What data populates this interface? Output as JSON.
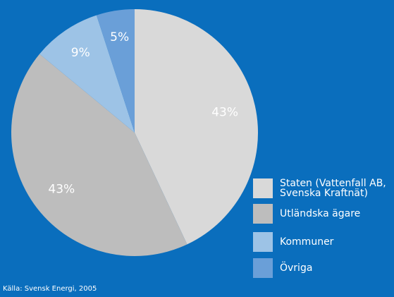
{
  "chart_data": {
    "type": "pie",
    "categories": [
      "Staten (Vattenfall AB, Svenska Kraftnät)",
      "Utländska ägare",
      "Kommuner",
      "Övriga"
    ],
    "values": [
      43,
      43,
      9,
      5
    ],
    "value_labels": [
      "43%",
      "43%",
      "9%",
      "5%"
    ],
    "colors": [
      "#d9d9d9",
      "#bdbdbd",
      "#9dc3e6",
      "#6a9fd8"
    ],
    "source": "Källa: Svensk Energi, 2005"
  }
}
